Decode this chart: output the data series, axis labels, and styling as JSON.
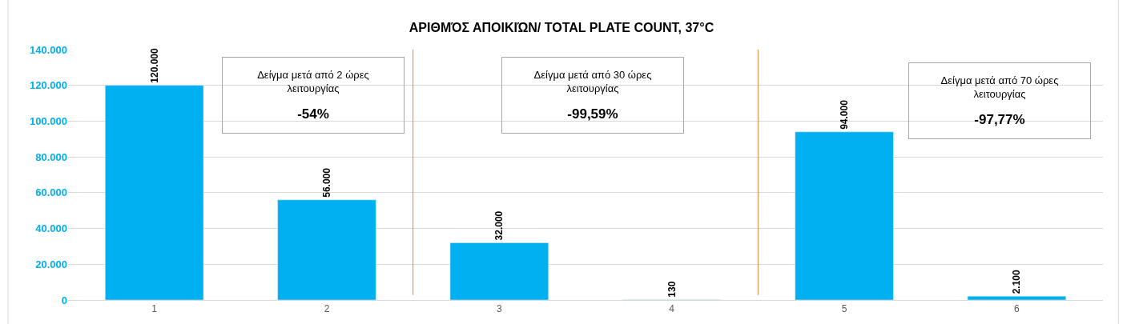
{
  "chart_data": {
    "type": "bar",
    "title": "ΑΡΙΘΜΌΣ ΑΠΟΙΚΙΏΝ/ TOTAL PLATE COUNT, 37°C",
    "x": [
      1,
      2,
      3,
      4,
      5,
      6
    ],
    "values": [
      120000,
      56000,
      32000,
      130,
      94000,
      2100
    ],
    "color": "#00b0f0",
    "xlim": [
      0.5,
      6.5
    ],
    "xticks": [
      1,
      2,
      3,
      4,
      5,
      6
    ],
    "ylim": [
      0,
      140000
    ],
    "yticks": [
      {
        "value": 0,
        "label": "0"
      },
      {
        "value": 20000,
        "label": "20.000"
      },
      {
        "value": 40000,
        "label": "40.000"
      },
      {
        "value": 60000,
        "label": "60.000"
      },
      {
        "value": 80000,
        "label": "80.000"
      },
      {
        "value": 100000,
        "label": "100.000"
      },
      {
        "value": 120000,
        "label": "120.000"
      },
      {
        "value": 140000,
        "label": "140.000"
      }
    ],
    "grid": "y",
    "value_labels": [
      "120.000",
      "56.000",
      "32.000",
      "130",
      "94.000",
      "2.100"
    ],
    "ref_lines": [
      {
        "axis": "x",
        "value": 2.5,
        "color": "#ed7d31"
      },
      {
        "axis": "x",
        "value": 4.5,
        "color": "#ed7d31"
      }
    ],
    "annotations": [
      "Δείγμα μετά από 2 ώρες λειτουργίας",
      "-54%",
      "Δείγμα μετά από 30 ώρες λειτουργίας",
      "-99,59%",
      "Δείγμα μετά από 70 ώρες λειτουργίας",
      "-97,77%"
    ]
  }
}
